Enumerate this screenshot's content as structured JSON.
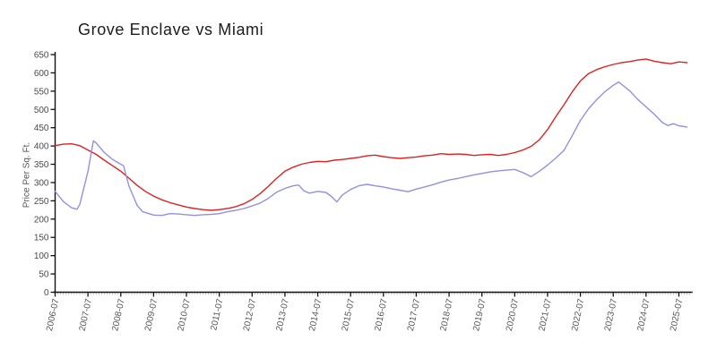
{
  "title": "Grove Enclave vs Miami",
  "chart_data": {
    "type": "line",
    "title": "Grove Enclave vs Miami",
    "xlabel": "",
    "ylabel": "Price Per Sq. Ft.",
    "ylim": [
      0,
      650
    ],
    "y_ticks": [
      0,
      50,
      100,
      150,
      200,
      250,
      300,
      350,
      400,
      450,
      500,
      550,
      600,
      650
    ],
    "x_tick_labels": [
      "2006-07",
      "2007-07",
      "2008-07",
      "2009-07",
      "2010-07",
      "2011-07",
      "2012-07",
      "2013-07",
      "2014-07",
      "2015-07",
      "2016-07",
      "2017-07",
      "2018-07",
      "2019-07",
      "2020-07",
      "2021-07",
      "2022-07",
      "2023-07",
      "2024-07",
      "2025-07"
    ],
    "x_minor_tick_every_months": 1,
    "x_range_months": [
      0,
      232
    ],
    "grid": false,
    "legend": "none",
    "colors": {
      "red_series": "#dd2222",
      "blue_series": "#9191e0",
      "axis": "#111111",
      "tick_label": "#555555"
    },
    "series": [
      {
        "name": "red-line",
        "color": "#dd2222",
        "points_month_value": [
          [
            0,
            401
          ],
          [
            3,
            405
          ],
          [
            6,
            406
          ],
          [
            9,
            401
          ],
          [
            12,
            389
          ],
          [
            15,
            377
          ],
          [
            18,
            361
          ],
          [
            21,
            346
          ],
          [
            24,
            331
          ],
          [
            27,
            312
          ],
          [
            30,
            292
          ],
          [
            33,
            276
          ],
          [
            36,
            263
          ],
          [
            39,
            253
          ],
          [
            42,
            245
          ],
          [
            45,
            239
          ],
          [
            48,
            233
          ],
          [
            51,
            229
          ],
          [
            54,
            226
          ],
          [
            57,
            224
          ],
          [
            60,
            226
          ],
          [
            63,
            229
          ],
          [
            66,
            234
          ],
          [
            69,
            242
          ],
          [
            72,
            254
          ],
          [
            75,
            270
          ],
          [
            78,
            290
          ],
          [
            81,
            312
          ],
          [
            84,
            331
          ],
          [
            87,
            342
          ],
          [
            90,
            350
          ],
          [
            93,
            355
          ],
          [
            96,
            358
          ],
          [
            99,
            357
          ],
          [
            102,
            361
          ],
          [
            105,
            363
          ],
          [
            108,
            366
          ],
          [
            111,
            369
          ],
          [
            114,
            373
          ],
          [
            117,
            375
          ],
          [
            120,
            371
          ],
          [
            123,
            368
          ],
          [
            126,
            366
          ],
          [
            129,
            368
          ],
          [
            132,
            370
          ],
          [
            135,
            373
          ],
          [
            138,
            375
          ],
          [
            141,
            379
          ],
          [
            144,
            377
          ],
          [
            147,
            378
          ],
          [
            150,
            377
          ],
          [
            153,
            374
          ],
          [
            156,
            376
          ],
          [
            159,
            377
          ],
          [
            162,
            374
          ],
          [
            165,
            377
          ],
          [
            168,
            382
          ],
          [
            171,
            389
          ],
          [
            174,
            399
          ],
          [
            177,
            417
          ],
          [
            180,
            445
          ],
          [
            183,
            480
          ],
          [
            186,
            513
          ],
          [
            189,
            548
          ],
          [
            192,
            578
          ],
          [
            195,
            598
          ],
          [
            198,
            609
          ],
          [
            201,
            617
          ],
          [
            204,
            623
          ],
          [
            207,
            628
          ],
          [
            210,
            631
          ],
          [
            213,
            635
          ],
          [
            216,
            638
          ],
          [
            219,
            632
          ],
          [
            222,
            628
          ],
          [
            225,
            625
          ],
          [
            228,
            630
          ],
          [
            231,
            628
          ]
        ]
      },
      {
        "name": "blue-line",
        "color": "#9191e0",
        "points_month_value": [
          [
            0,
            276
          ],
          [
            3,
            248
          ],
          [
            6,
            231
          ],
          [
            8,
            227
          ],
          [
            9,
            240
          ],
          [
            12,
            330
          ],
          [
            14,
            414
          ],
          [
            15,
            408
          ],
          [
            18,
            382
          ],
          [
            21,
            363
          ],
          [
            24,
            350
          ],
          [
            25,
            346
          ],
          [
            27,
            290
          ],
          [
            30,
            237
          ],
          [
            32,
            220
          ],
          [
            36,
            211
          ],
          [
            39,
            210
          ],
          [
            42,
            215
          ],
          [
            45,
            214
          ],
          [
            48,
            212
          ],
          [
            51,
            210
          ],
          [
            54,
            212
          ],
          [
            57,
            213
          ],
          [
            60,
            215
          ],
          [
            63,
            220
          ],
          [
            66,
            224
          ],
          [
            69,
            229
          ],
          [
            72,
            236
          ],
          [
            75,
            244
          ],
          [
            78,
            257
          ],
          [
            81,
            274
          ],
          [
            84,
            284
          ],
          [
            87,
            291
          ],
          [
            89,
            293
          ],
          [
            91,
            277
          ],
          [
            93,
            271
          ],
          [
            96,
            276
          ],
          [
            99,
            273
          ],
          [
            101,
            262
          ],
          [
            103,
            247
          ],
          [
            105,
            266
          ],
          [
            108,
            281
          ],
          [
            111,
            291
          ],
          [
            114,
            295
          ],
          [
            117,
            291
          ],
          [
            120,
            288
          ],
          [
            123,
            283
          ],
          [
            126,
            279
          ],
          [
            129,
            275
          ],
          [
            132,
            282
          ],
          [
            135,
            288
          ],
          [
            138,
            294
          ],
          [
            141,
            301
          ],
          [
            144,
            307
          ],
          [
            147,
            311
          ],
          [
            150,
            316
          ],
          [
            153,
            321
          ],
          [
            156,
            325
          ],
          [
            159,
            329
          ],
          [
            162,
            332
          ],
          [
            165,
            334
          ],
          [
            168,
            336
          ],
          [
            171,
            327
          ],
          [
            174,
            316
          ],
          [
            177,
            331
          ],
          [
            180,
            348
          ],
          [
            183,
            367
          ],
          [
            186,
            388
          ],
          [
            189,
            428
          ],
          [
            192,
            470
          ],
          [
            195,
            502
          ],
          [
            198,
            527
          ],
          [
            201,
            549
          ],
          [
            204,
            566
          ],
          [
            206,
            575
          ],
          [
            210,
            551
          ],
          [
            213,
            527
          ],
          [
            216,
            507
          ],
          [
            219,
            487
          ],
          [
            222,
            464
          ],
          [
            224,
            456
          ],
          [
            226,
            461
          ],
          [
            228,
            455
          ],
          [
            231,
            452
          ]
        ]
      }
    ]
  }
}
